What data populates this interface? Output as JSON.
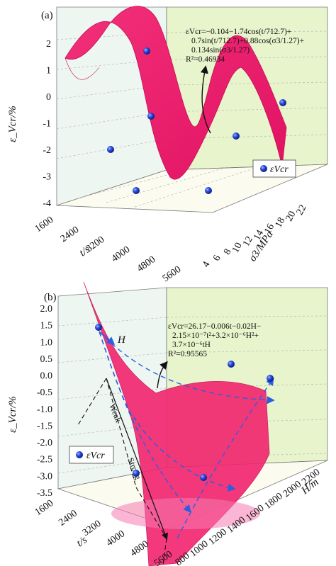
{
  "chart_data": [
    {
      "type": "surface3d",
      "panel": "(a)",
      "ylabel": "ε_Vcr/%",
      "xlabel": "t/s",
      "zlabel": "σ3/MPa",
      "y_ticks": [
        "2",
        "1",
        "0",
        "-1",
        "-2",
        "-3",
        "-4"
      ],
      "x_ticks": [
        "1600",
        "2400",
        "3200",
        "4000",
        "4800",
        "5600"
      ],
      "z_ticks": [
        "4",
        "6",
        "8",
        "10",
        "12",
        "14",
        "16",
        "18",
        "20",
        "22"
      ],
      "ylim": [
        -4,
        2.5
      ],
      "xlim": [
        1600,
        5600
      ],
      "zlim": [
        4,
        22
      ],
      "equation": [
        "εVcr=−0.104−1.74cos(t/712.7)+",
        "0.7sin(t/712.7)+0.88cos(σ3/1.27)+",
        "0.134sin(σ3/1.27)",
        "R²=0.46934"
      ],
      "legend": "εVcr",
      "legend_position": "right",
      "surface_color": "#f2246e",
      "point_color": "#1f3fd6",
      "background_left": "#ecf5f0",
      "background_right": "#e6f3c8"
    },
    {
      "type": "surface3d",
      "panel": "(b)",
      "ylabel": "ε_Vcr/%",
      "xlabel": "t/s",
      "zlabel": "H/m",
      "y_ticks": [
        "2.0",
        "1.5",
        "1.0",
        "0.5",
        "0.0",
        "-0.5",
        "-1.0",
        "-1.5",
        "-2.0",
        "-2.5",
        "-3.0",
        "-3.5"
      ],
      "x_ticks": [
        "1600",
        "2400",
        "3200",
        "4000",
        "4800",
        "5600"
      ],
      "z_ticks": [
        "800",
        "1000",
        "1200",
        "1400",
        "1600",
        "1800",
        "2000",
        "2200"
      ],
      "ylim": [
        -3.5,
        2.0
      ],
      "xlim": [
        1600,
        5600
      ],
      "zlim": [
        800,
        2200
      ],
      "equation": [
        "εVcr=26.17−0.006t−0.02H−",
        "2.15×10⁻⁷t²+3.2×10⁻⁶H²+",
        "3.7×10⁻⁶tH",
        "R²=0.95565"
      ],
      "arrow_label_h": "H",
      "annot_weak": "Weak",
      "annot_strong": "Strong",
      "legend": "εVcr",
      "legend_position": "left",
      "surface_color": "#f2246e",
      "point_color": "#1f3fd6"
    }
  ]
}
